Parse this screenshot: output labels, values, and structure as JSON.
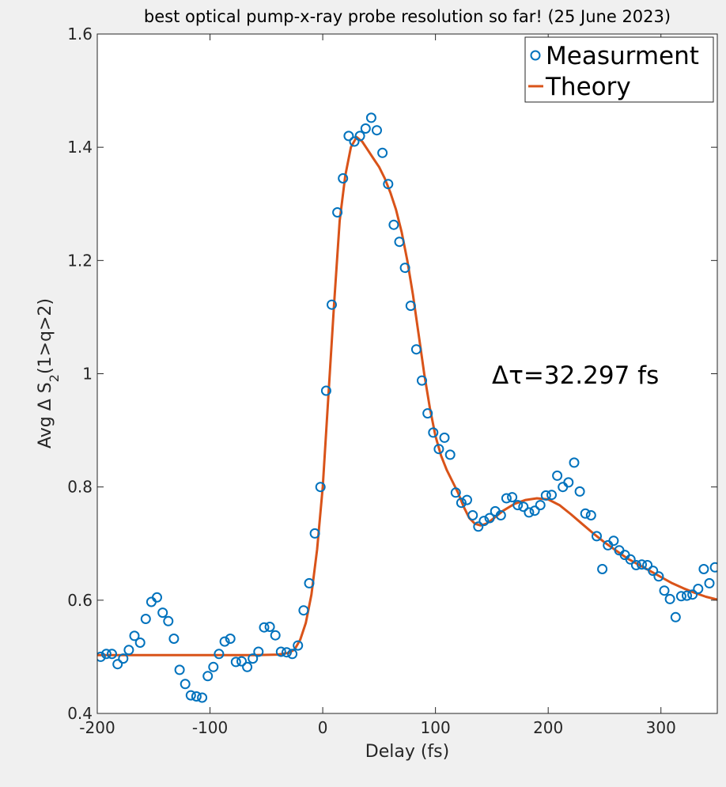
{
  "chart_data": {
    "type": "scatter",
    "title": "best optical pump-x-ray probe resolution so far! (25 June 2023)",
    "xlabel": "Delay (fs)",
    "ylabel_prefix": "Avg Δ S",
    "ylabel_sub": "2",
    "ylabel_suffix": "(1>q>2)",
    "xlim": [
      -200,
      350
    ],
    "ylim": [
      0.4,
      1.6
    ],
    "xticks": [
      -200,
      -100,
      0,
      100,
      200,
      300
    ],
    "xtick_labels": [
      "-200",
      "-100",
      "0",
      "100",
      "200",
      "300"
    ],
    "yticks": [
      0.4,
      0.6,
      0.8,
      1.0,
      1.2,
      1.4,
      1.6
    ],
    "ytick_labels": [
      "0.4",
      "0.6",
      "0.8",
      "1",
      "1.2",
      "1.4",
      "1.6"
    ],
    "grid": false,
    "legend_position": "top-right",
    "annotation": "Δτ=32.297 fs",
    "colors": {
      "measurement": "#0072BD",
      "theory": "#D95319"
    },
    "series": [
      {
        "name": "Measurment",
        "style": "markers",
        "x": [
          -197,
          -192,
          -187,
          -182,
          -177,
          -172,
          -167,
          -162,
          -157,
          -152,
          -147,
          -142,
          -137,
          -132,
          -127,
          -122,
          -117,
          -112,
          -107,
          -102,
          -97,
          -92,
          -87,
          -82,
          -77,
          -72,
          -67,
          -62,
          -57,
          -52,
          -47,
          -42,
          -37,
          -32,
          -27,
          -22,
          -17,
          -12,
          -7,
          -2,
          3,
          8,
          13,
          18,
          23,
          28,
          33,
          38,
          43,
          48,
          53,
          58,
          63,
          68,
          73,
          78,
          83,
          88,
          93,
          98,
          103,
          108,
          113,
          118,
          123,
          128,
          133,
          138,
          143,
          148,
          153,
          158,
          163,
          168,
          173,
          178,
          183,
          188,
          193,
          198,
          203,
          208,
          213,
          218,
          223,
          228,
          233,
          238,
          243,
          248,
          253,
          258,
          263,
          268,
          273,
          278,
          283,
          288,
          293,
          298,
          303,
          308,
          313,
          318,
          323,
          328,
          333,
          338,
          343,
          348
        ],
        "y": [
          0.5,
          0.505,
          0.505,
          0.487,
          0.497,
          0.512,
          0.537,
          0.525,
          0.567,
          0.597,
          0.605,
          0.578,
          0.563,
          0.532,
          0.477,
          0.452,
          0.432,
          0.43,
          0.428,
          0.466,
          0.482,
          0.505,
          0.527,
          0.532,
          0.491,
          0.492,
          0.482,
          0.497,
          0.509,
          0.552,
          0.553,
          0.538,
          0.509,
          0.508,
          0.505,
          0.52,
          0.582,
          0.63,
          0.718,
          0.8,
          0.97,
          1.122,
          1.285,
          1.345,
          1.42,
          1.41,
          1.42,
          1.433,
          1.452,
          1.43,
          1.39,
          1.335,
          1.263,
          1.233,
          1.187,
          1.12,
          1.043,
          0.988,
          0.93,
          0.896,
          0.867,
          0.887,
          0.857,
          0.79,
          0.772,
          0.777,
          0.75,
          0.73,
          0.74,
          0.745,
          0.757,
          0.75,
          0.78,
          0.782,
          0.768,
          0.765,
          0.755,
          0.758,
          0.768,
          0.785,
          0.786,
          0.82,
          0.8,
          0.808,
          0.843,
          0.792,
          0.753,
          0.75,
          0.713,
          0.655,
          0.697,
          0.705,
          0.688,
          0.68,
          0.672,
          0.662,
          0.663,
          0.662,
          0.652,
          0.642,
          0.617,
          0.602,
          0.57,
          0.607,
          0.608,
          0.61,
          0.62,
          0.655,
          0.63,
          0.658
        ]
      },
      {
        "name": "Theory",
        "style": "line",
        "x": [
          -200,
          -60,
          -40,
          -30,
          -25,
          -20,
          -15,
          -10,
          -5,
          0,
          5,
          10,
          15,
          20,
          25,
          30,
          35,
          40,
          45,
          50,
          55,
          60,
          65,
          70,
          75,
          80,
          85,
          90,
          95,
          100,
          105,
          110,
          115,
          120,
          125,
          130,
          135,
          140,
          145,
          150,
          160,
          170,
          180,
          190,
          200,
          210,
          220,
          230,
          240,
          250,
          260,
          270,
          280,
          290,
          300,
          310,
          320,
          330,
          340,
          350
        ],
        "y": [
          0.503,
          0.503,
          0.504,
          0.507,
          0.513,
          0.53,
          0.56,
          0.61,
          0.69,
          0.8,
          0.96,
          1.12,
          1.27,
          1.35,
          1.4,
          1.418,
          1.41,
          1.395,
          1.38,
          1.365,
          1.345,
          1.32,
          1.29,
          1.25,
          1.2,
          1.14,
          1.07,
          1.0,
          0.94,
          0.89,
          0.855,
          0.83,
          0.81,
          0.79,
          0.765,
          0.745,
          0.735,
          0.732,
          0.735,
          0.742,
          0.758,
          0.77,
          0.777,
          0.78,
          0.778,
          0.768,
          0.752,
          0.735,
          0.718,
          0.702,
          0.688,
          0.674,
          0.663,
          0.652,
          0.641,
          0.63,
          0.621,
          0.613,
          0.606,
          0.601
        ]
      }
    ]
  }
}
